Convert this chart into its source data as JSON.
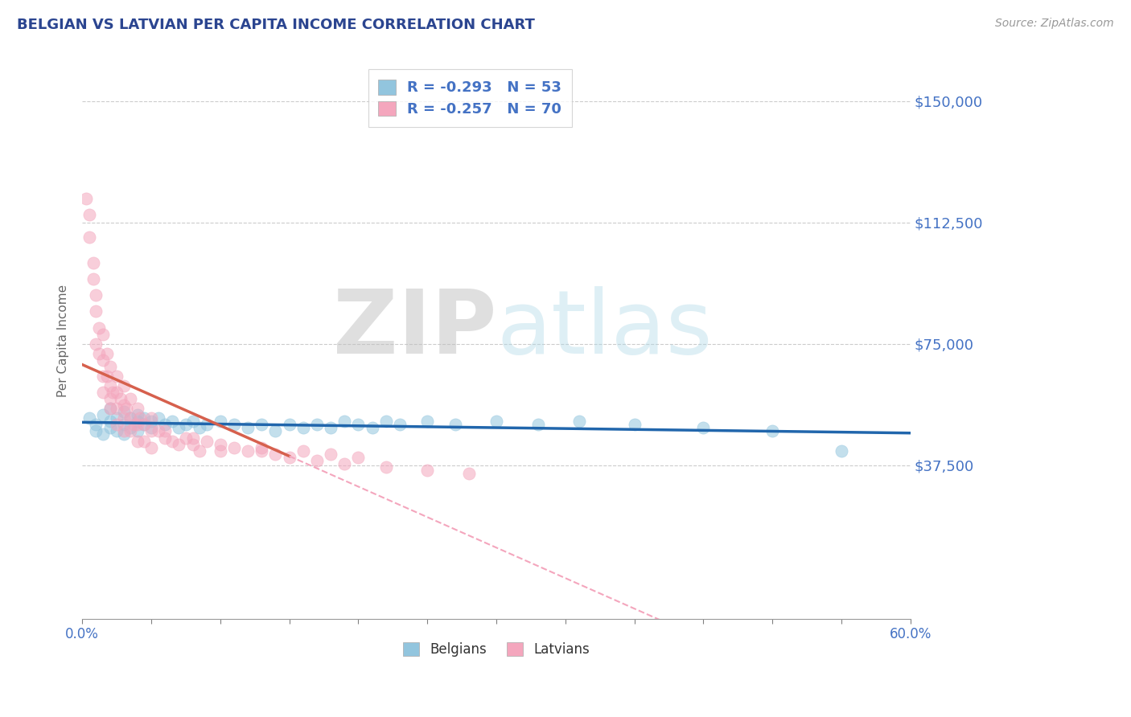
{
  "title": "BELGIAN VS LATVIAN PER CAPITA INCOME CORRELATION CHART",
  "source": "Source: ZipAtlas.com",
  "ylabel": "Per Capita Income",
  "yticks": [
    0,
    37500,
    75000,
    112500,
    150000
  ],
  "ytick_labels": [
    "",
    "$37,500",
    "$75,000",
    "$112,500",
    "$150,000"
  ],
  "xlim": [
    0.0,
    0.6
  ],
  "ylim": [
    -10000,
    162000
  ],
  "belgian_color": "#92c5de",
  "latvian_color": "#f4a6bd",
  "belgian_line_color": "#2166ac",
  "latvian_line_color": "#d6604d",
  "latvian_dash_color": "#f4a6bd",
  "background_color": "#ffffff",
  "grid_color": "#cccccc",
  "title_color": "#2b4590",
  "axis_color": "#4472c4",
  "legend_belgian_label": "R = -0.293   N = 53",
  "legend_latvian_label": "R = -0.257   N = 70",
  "belgian_scatter_x": [
    0.005,
    0.01,
    0.01,
    0.015,
    0.015,
    0.02,
    0.02,
    0.02,
    0.025,
    0.025,
    0.03,
    0.03,
    0.03,
    0.035,
    0.035,
    0.04,
    0.04,
    0.04,
    0.045,
    0.045,
    0.05,
    0.05,
    0.055,
    0.06,
    0.065,
    0.07,
    0.075,
    0.08,
    0.085,
    0.09,
    0.1,
    0.11,
    0.12,
    0.13,
    0.14,
    0.15,
    0.16,
    0.17,
    0.18,
    0.19,
    0.2,
    0.21,
    0.22,
    0.23,
    0.25,
    0.27,
    0.3,
    0.33,
    0.36,
    0.4,
    0.45,
    0.5,
    0.55
  ],
  "belgian_scatter_y": [
    52000,
    50000,
    48000,
    53000,
    47000,
    55000,
    51000,
    49000,
    52000,
    48000,
    54000,
    50000,
    47000,
    52000,
    49000,
    53000,
    51000,
    48000,
    52000,
    50000,
    51000,
    49000,
    52000,
    50000,
    51000,
    49000,
    50000,
    51000,
    49000,
    50000,
    51000,
    50000,
    49000,
    50000,
    48000,
    50000,
    49000,
    50000,
    49000,
    51000,
    50000,
    49000,
    51000,
    50000,
    51000,
    50000,
    51000,
    50000,
    51000,
    50000,
    49000,
    48000,
    42000
  ],
  "latvian_scatter_x": [
    0.003,
    0.005,
    0.005,
    0.008,
    0.008,
    0.01,
    0.01,
    0.01,
    0.012,
    0.012,
    0.015,
    0.015,
    0.015,
    0.015,
    0.018,
    0.018,
    0.02,
    0.02,
    0.02,
    0.02,
    0.022,
    0.025,
    0.025,
    0.025,
    0.025,
    0.028,
    0.03,
    0.03,
    0.03,
    0.03,
    0.032,
    0.035,
    0.035,
    0.035,
    0.038,
    0.04,
    0.04,
    0.04,
    0.042,
    0.045,
    0.045,
    0.05,
    0.05,
    0.05,
    0.055,
    0.06,
    0.065,
    0.07,
    0.075,
    0.08,
    0.085,
    0.09,
    0.1,
    0.1,
    0.11,
    0.12,
    0.13,
    0.14,
    0.15,
    0.17,
    0.19,
    0.22,
    0.25,
    0.28,
    0.2,
    0.18,
    0.16,
    0.13,
    0.08,
    0.06
  ],
  "latvian_scatter_y": [
    120000,
    115000,
    108000,
    100000,
    95000,
    90000,
    85000,
    75000,
    80000,
    72000,
    78000,
    70000,
    65000,
    60000,
    72000,
    65000,
    68000,
    62000,
    58000,
    55000,
    60000,
    65000,
    60000,
    55000,
    50000,
    58000,
    62000,
    56000,
    52000,
    48000,
    55000,
    58000,
    52000,
    48000,
    50000,
    55000,
    50000,
    45000,
    52000,
    50000,
    45000,
    52000,
    48000,
    43000,
    48000,
    46000,
    45000,
    44000,
    46000,
    44000,
    42000,
    45000,
    44000,
    42000,
    43000,
    42000,
    42000,
    41000,
    40000,
    39000,
    38000,
    37000,
    36000,
    35000,
    40000,
    41000,
    42000,
    43000,
    46000,
    48000
  ]
}
